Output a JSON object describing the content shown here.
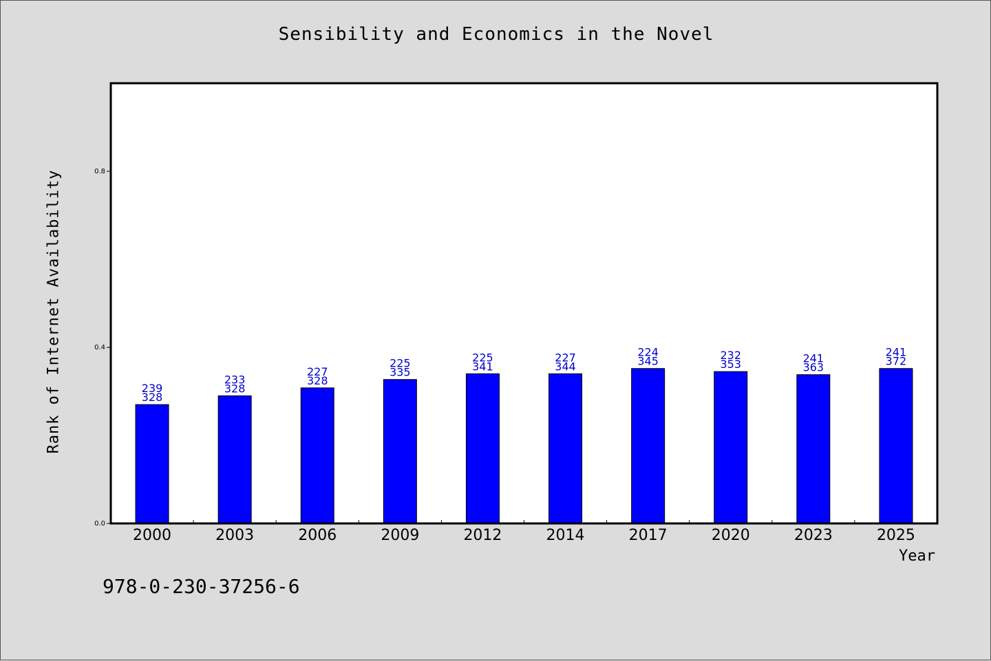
{
  "chart_data": {
    "type": "bar",
    "title": "Sensibility and Economics in the Novel",
    "xlabel": "Year",
    "ylabel": "Rank of Internet Availability",
    "ylim": [
      0,
      1.0
    ],
    "yticks": [
      "0.0",
      "0.4",
      "0.8"
    ],
    "grid": false,
    "categories": [
      "2000",
      "2003",
      "2006",
      "2009",
      "2012",
      "2014",
      "2017",
      "2020",
      "2023",
      "2025"
    ],
    "values": [
      0.27,
      0.29,
      0.308,
      0.327,
      0.34,
      0.34,
      0.352,
      0.345,
      0.338,
      0.352
    ],
    "label_top": [
      "239",
      "233",
      "227",
      "225",
      "225",
      "227",
      "224",
      "232",
      "241",
      "241"
    ],
    "label_bottom": [
      "328",
      "328",
      "328",
      "335",
      "341",
      "344",
      "345",
      "353",
      "363",
      "372"
    ],
    "bar_color": "#0000ff",
    "label_color": "#0000cc"
  },
  "footer": {
    "code": "978-0-230-37256-6"
  }
}
